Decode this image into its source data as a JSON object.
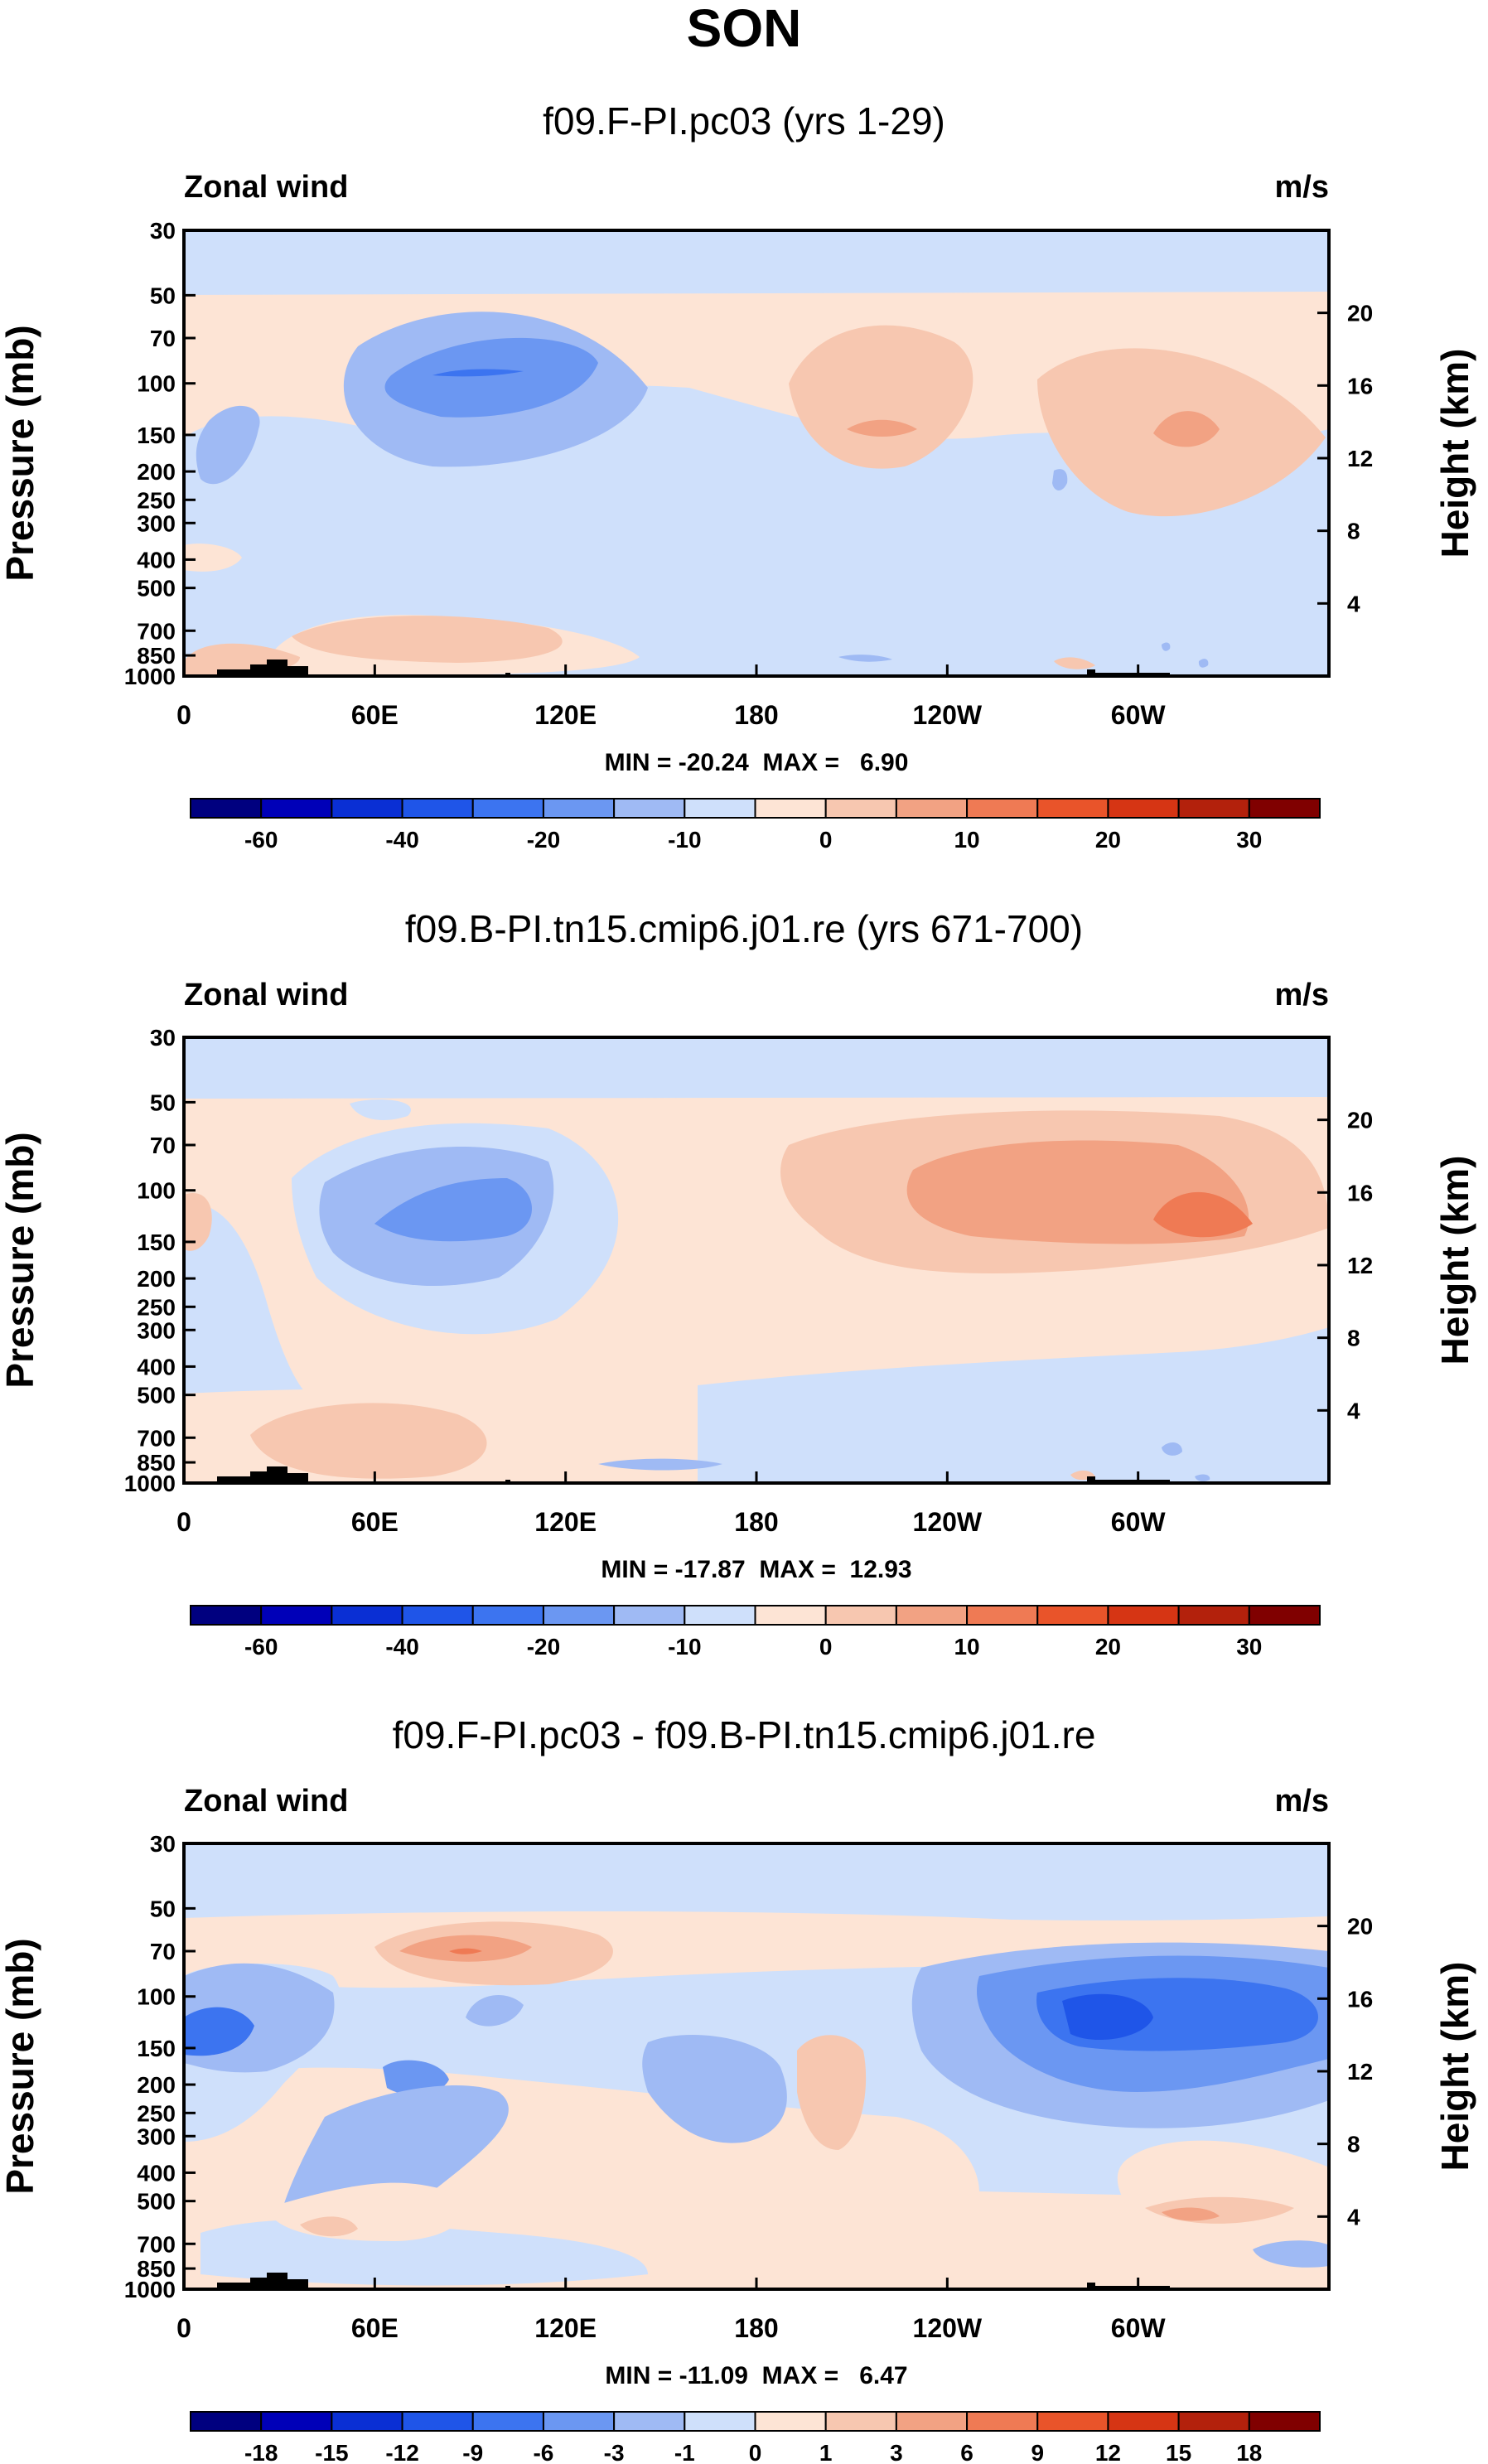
{
  "page_title": "SON",
  "chart_data": [
    {
      "type": "contour",
      "title": "f09.F-PI.pc03 (yrs 1-29)",
      "variable_label": "Zonal wind",
      "units_label": "m/s",
      "ylabel_left": "Pressure (mb)",
      "ylabel_right": "Height (km)",
      "x_ticks": [
        "0",
        "60E",
        "120E",
        "180",
        "120W",
        "60W"
      ],
      "x_tick_lon": [
        0,
        60,
        120,
        180,
        240,
        300
      ],
      "xlim": [
        0,
        360
      ],
      "y_ticks": [
        "30",
        "50",
        "70",
        "100",
        "150",
        "200",
        "250",
        "300",
        "400",
        "500",
        "700",
        "850",
        "1000"
      ],
      "y_tick_p": [
        30,
        50,
        70,
        100,
        150,
        200,
        250,
        300,
        400,
        500,
        700,
        850,
        1000
      ],
      "ylim": [
        30,
        1000
      ],
      "height_ticks": [
        "20",
        "16",
        "12",
        "8",
        "4"
      ],
      "height_tick_km": [
        20,
        16,
        12,
        8,
        4
      ],
      "min_max_text": "MIN = -20.24  MAX =   6.90",
      "min": -20.24,
      "max": 6.9,
      "colorbar_labels": [
        "-60",
        "-40",
        "-20",
        "-10",
        "0",
        "10",
        "20",
        "30"
      ],
      "colorbar_label_index": [
        1,
        3,
        5,
        7,
        9,
        11,
        13,
        15
      ],
      "colorbar_colors": [
        "#00007f",
        "#0000b8",
        "#0a2fd4",
        "#1f55e8",
        "#3c74f0",
        "#6b97f2",
        "#9fbaf4",
        "#cfe0fb",
        "#fde4d5",
        "#f7c7b0",
        "#f2a283",
        "#ef7a54",
        "#e9542a",
        "#d63514",
        "#b3210c",
        "#800000"
      ]
    },
    {
      "type": "contour",
      "title": "f09.B-PI.tn15.cmip6.j01.re (yrs 671-700)",
      "variable_label": "Zonal wind",
      "units_label": "m/s",
      "ylabel_left": "Pressure (mb)",
      "ylabel_right": "Height (km)",
      "x_ticks": [
        "0",
        "60E",
        "120E",
        "180",
        "120W",
        "60W"
      ],
      "x_tick_lon": [
        0,
        60,
        120,
        180,
        240,
        300
      ],
      "xlim": [
        0,
        360
      ],
      "y_ticks": [
        "30",
        "50",
        "70",
        "100",
        "150",
        "200",
        "250",
        "300",
        "400",
        "500",
        "700",
        "850",
        "1000"
      ],
      "y_tick_p": [
        30,
        50,
        70,
        100,
        150,
        200,
        250,
        300,
        400,
        500,
        700,
        850,
        1000
      ],
      "ylim": [
        30,
        1000
      ],
      "height_ticks": [
        "20",
        "16",
        "12",
        "8",
        "4"
      ],
      "height_tick_km": [
        20,
        16,
        12,
        8,
        4
      ],
      "min_max_text": "MIN = -17.87  MAX =  12.93",
      "min": -17.87,
      "max": 12.93,
      "colorbar_labels": [
        "-60",
        "-40",
        "-20",
        "-10",
        "0",
        "10",
        "20",
        "30"
      ],
      "colorbar_label_index": [
        1,
        3,
        5,
        7,
        9,
        11,
        13,
        15
      ],
      "colorbar_colors": [
        "#00007f",
        "#0000b8",
        "#0a2fd4",
        "#1f55e8",
        "#3c74f0",
        "#6b97f2",
        "#9fbaf4",
        "#cfe0fb",
        "#fde4d5",
        "#f7c7b0",
        "#f2a283",
        "#ef7a54",
        "#e9542a",
        "#d63514",
        "#b3210c",
        "#800000"
      ]
    },
    {
      "type": "contour",
      "title": "f09.F-PI.pc03 - f09.B-PI.tn15.cmip6.j01.re",
      "variable_label": "Zonal wind",
      "units_label": "m/s",
      "ylabel_left": "Pressure (mb)",
      "ylabel_right": "Height (km)",
      "x_ticks": [
        "0",
        "60E",
        "120E",
        "180",
        "120W",
        "60W"
      ],
      "x_tick_lon": [
        0,
        60,
        120,
        180,
        240,
        300
      ],
      "xlim": [
        0,
        360
      ],
      "y_ticks": [
        "30",
        "50",
        "70",
        "100",
        "150",
        "200",
        "250",
        "300",
        "400",
        "500",
        "700",
        "850",
        "1000"
      ],
      "y_tick_p": [
        30,
        50,
        70,
        100,
        150,
        200,
        250,
        300,
        400,
        500,
        700,
        850,
        1000
      ],
      "ylim": [
        30,
        1000
      ],
      "height_ticks": [
        "20",
        "16",
        "12",
        "8",
        "4"
      ],
      "height_tick_km": [
        20,
        16,
        12,
        8,
        4
      ],
      "min_max_text": "MIN = -11.09  MAX =   6.47",
      "min": -11.09,
      "max": 6.47,
      "colorbar_labels": [
        "-18",
        "-15",
        "-12",
        "-9",
        "-6",
        "-3",
        "-1",
        "0",
        "1",
        "3",
        "6",
        "9",
        "12",
        "15",
        "18"
      ],
      "colorbar_label_index": [
        1,
        2,
        3,
        4,
        5,
        6,
        7,
        8,
        9,
        10,
        11,
        12,
        13,
        14,
        15
      ],
      "colorbar_colors": [
        "#00007f",
        "#0000b8",
        "#0a2fd4",
        "#1f55e8",
        "#3c74f0",
        "#6b97f2",
        "#9fbaf4",
        "#cfe0fb",
        "#fde4d5",
        "#f7c7b0",
        "#f2a283",
        "#ef7a54",
        "#e9542a",
        "#d63514",
        "#b3210c",
        "#800000"
      ]
    }
  ]
}
